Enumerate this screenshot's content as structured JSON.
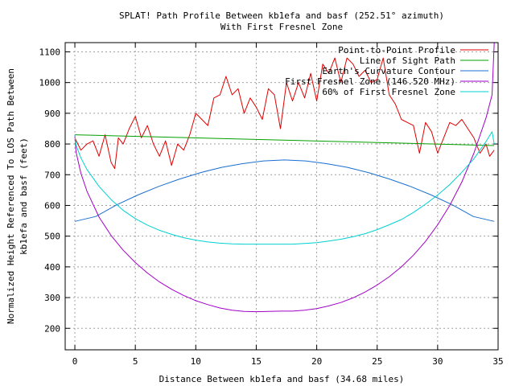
{
  "chart_data": {
    "type": "line",
    "title": "SPLAT! Path Profile Between kb1efa and basf (252.51° azimuth)",
    "subtitle": "With First Fresnel Zone",
    "xlabel": "Distance Between kb1efa and basf (34.68 miles)",
    "ylabel": [
      "Normalized Height Referenced To LOS Path Between",
      "kb1efa and basf (feet)"
    ],
    "xlim": [
      -0.8,
      35
    ],
    "ylim": [
      130,
      1130
    ],
    "xticks": [
      0,
      5,
      10,
      15,
      20,
      25,
      30,
      35
    ],
    "yticks": [
      200,
      300,
      400,
      500,
      600,
      700,
      800,
      900,
      1000,
      1100
    ],
    "grid": true,
    "legend_position": "top-right",
    "path_length_miles": 34.68,
    "series": [
      {
        "name": "Point-to-Point Profile",
        "color": "#e00000",
        "x": [
          0.0,
          0.5,
          1.0,
          1.5,
          2.0,
          2.5,
          3.0,
          3.3,
          3.6,
          4.0,
          4.5,
          5.0,
          5.5,
          6.0,
          6.5,
          7.0,
          7.5,
          8.0,
          8.5,
          9.0,
          9.5,
          10.0,
          10.5,
          11.0,
          11.5,
          12.0,
          12.5,
          13.0,
          13.5,
          14.0,
          14.5,
          15.0,
          15.5,
          16.0,
          16.5,
          17.0,
          17.5,
          18.0,
          18.5,
          19.0,
          19.5,
          20.0,
          20.5,
          21.0,
          21.5,
          22.0,
          22.5,
          23.0,
          23.5,
          24.0,
          24.5,
          25.0,
          25.5,
          26.0,
          26.5,
          27.0,
          27.5,
          28.0,
          28.5,
          29.0,
          29.5,
          30.0,
          30.5,
          31.0,
          31.5,
          32.0,
          32.5,
          33.0,
          33.5,
          34.0,
          34.3,
          34.68
        ],
        "y": [
          820,
          780,
          800,
          810,
          760,
          830,
          740,
          720,
          820,
          800,
          850,
          890,
          820,
          860,
          800,
          760,
          810,
          730,
          800,
          780,
          830,
          900,
          880,
          860,
          950,
          960,
          1020,
          960,
          980,
          900,
          950,
          920,
          880,
          980,
          960,
          850,
          1000,
          940,
          1000,
          950,
          1030,
          940,
          1060,
          1030,
          1080,
          1000,
          1080,
          1060,
          1020,
          1040,
          1000,
          1010,
          1080,
          960,
          930,
          880,
          870,
          860,
          770,
          870,
          840,
          770,
          820,
          870,
          860,
          880,
          850,
          820,
          770,
          800,
          760,
          780
        ]
      },
      {
        "name": "Line of Sight Path",
        "color": "#00a000",
        "x": [
          0,
          34.68
        ],
        "y": [
          830,
          795
        ]
      },
      {
        "name": "Earth's Curvature Contour",
        "color": "#1a6fd0",
        "x": [
          0,
          1.734,
          3.468,
          5.202,
          6.936,
          8.67,
          10.404,
          12.138,
          13.872,
          15.606,
          17.34,
          19.074,
          20.808,
          22.542,
          24.276,
          26.01,
          27.744,
          29.478,
          31.212,
          32.946,
          34.68
        ],
        "y": [
          548,
          564,
          602,
          634,
          662,
          686,
          707,
          724,
          736,
          745,
          748,
          745,
          736,
          724,
          707,
          686,
          662,
          634,
          602,
          564,
          548
        ]
      },
      {
        "name": "First Fresnel Zone (146.520 MHz)",
        "color": "#a000c8",
        "x": [
          0,
          0.1,
          0.5,
          1.0,
          2.0,
          3.0,
          4.0,
          5.0,
          6.0,
          7.0,
          8.0,
          9.0,
          10.0,
          11.0,
          12.0,
          13.0,
          14.0,
          15.0,
          16.0,
          17.0,
          17.34,
          18.0,
          19.0,
          20.0,
          21.0,
          22.0,
          23.0,
          24.0,
          25.0,
          26.0,
          27.0,
          28.0,
          29.0,
          30.0,
          31.0,
          32.0,
          33.0,
          34.0,
          34.5,
          34.68
        ],
        "y": [
          830,
          774,
          705,
          646,
          562,
          502,
          454,
          414,
          380,
          351,
          327,
          307,
          290,
          277,
          266,
          259,
          255,
          254,
          255,
          256,
          256,
          256,
          259,
          264,
          273,
          284,
          299,
          318,
          341,
          368,
          400,
          438,
          483,
          537,
          600,
          676,
          770,
          885,
          960,
          1130
        ]
      },
      {
        "name": "60% of First Fresnel Zone",
        "color": "#00d0d0",
        "x": [
          0,
          0.1,
          0.5,
          1.0,
          2.0,
          3.0,
          4.0,
          5.0,
          6.0,
          7.0,
          8.0,
          9.0,
          10.0,
          11.0,
          12.0,
          13.0,
          14.0,
          15.0,
          16.0,
          17.0,
          17.34,
          18.0,
          19.0,
          20.0,
          21.0,
          22.0,
          23.0,
          24.0,
          25.0,
          26.0,
          27.0,
          28.0,
          29.0,
          30.0,
          31.0,
          32.0,
          33.0,
          34.0,
          34.5,
          34.68
        ],
        "y": [
          830,
          796,
          755,
          717,
          662,
          619,
          584,
          557,
          536,
          519,
          506,
          495,
          487,
          481,
          477,
          475,
          474,
          474,
          474,
          474,
          474,
          474,
          476,
          479,
          484,
          490,
          498,
          508,
          521,
          537,
          554,
          577,
          604,
          634,
          668,
          708,
          752,
          808,
          840,
          800
        ]
      }
    ]
  }
}
